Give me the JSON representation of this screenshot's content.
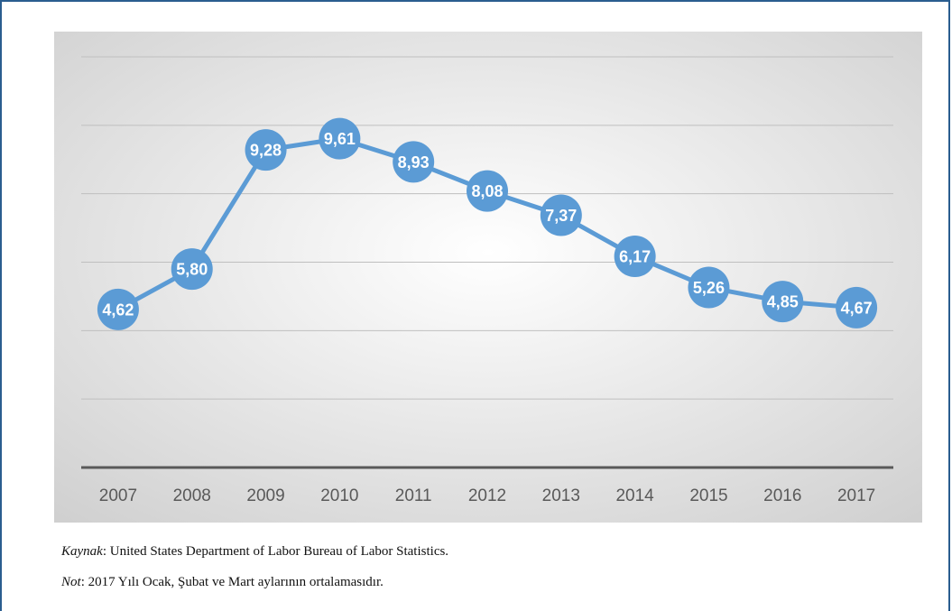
{
  "colors": {
    "line": "#5b9bd5",
    "marker_fill": "#5b9bd5",
    "label_text": "#ffffff",
    "axis_text": "#595959",
    "gridline": "#bfbfbf",
    "baseline": "#595959",
    "plot_bg_center": "#ffffff",
    "plot_bg_edge": "#cfcfcf",
    "frame_border": "#2a5d8f"
  },
  "chart_data": {
    "type": "line",
    "title": "",
    "xlabel": "",
    "ylabel": "",
    "categories": [
      "2007",
      "2008",
      "2009",
      "2010",
      "2011",
      "2012",
      "2013",
      "2014",
      "2015",
      "2016",
      "2017"
    ],
    "series": [
      {
        "values": [
          4.62,
          5.8,
          9.28,
          9.61,
          8.93,
          8.08,
          7.37,
          6.17,
          5.26,
          4.85,
          4.67
        ],
        "labels": [
          "4,62",
          "5,80",
          "9,28",
          "9,61",
          "8,93",
          "8,08",
          "7,37",
          "6,17",
          "5,26",
          "4,85",
          "4,67"
        ]
      }
    ],
    "ylim": [
      0,
      12
    ],
    "y_gridlines": [
      2,
      4,
      6,
      8,
      10,
      12
    ],
    "y_tick_labels_shown": false,
    "grid": true,
    "legend": "none",
    "data_labels": true,
    "markers": "circle"
  },
  "notes": {
    "source_label": "Kaynak",
    "source_text": ": United States Department of Labor Bureau of Labor Statistics.",
    "note_label": "Not",
    "note_text": ": 2017 Yılı Ocak, Şubat ve Mart aylarının ortalamasıdır."
  }
}
